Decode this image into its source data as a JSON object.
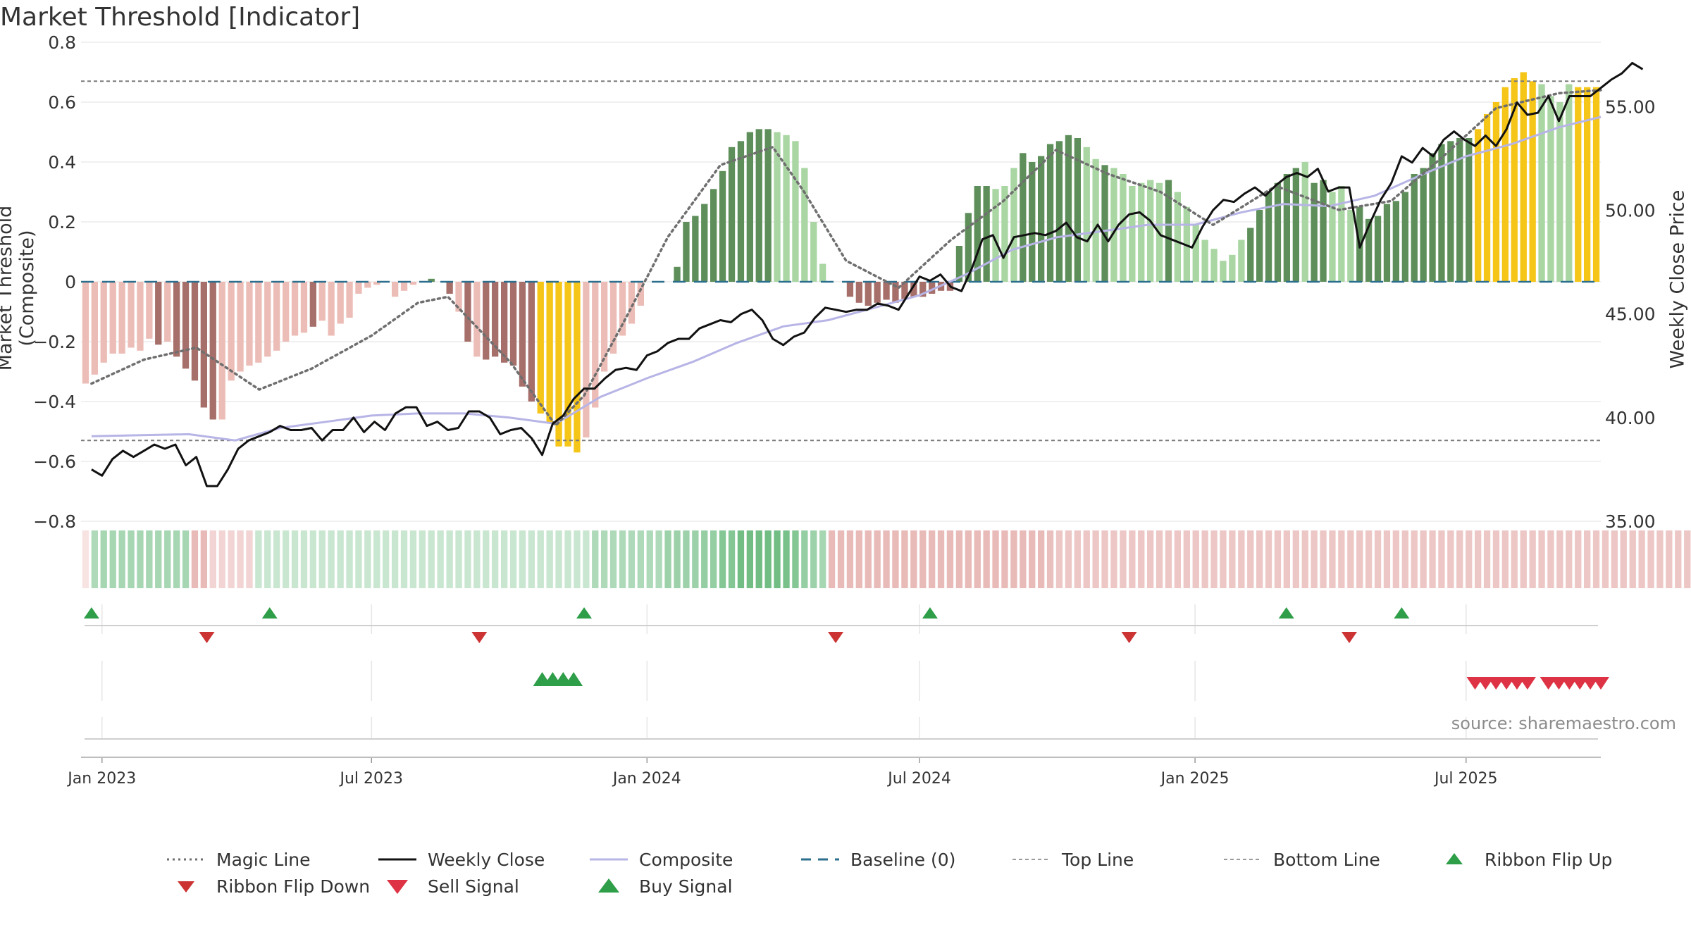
{
  "title": "Market Threshold [Indicator]",
  "source": "source: sharemaestro.com",
  "left_axis_label": "Market Threshold (Composite)",
  "right_axis_label": "Weekly Close Price",
  "colors": {
    "bar_up_dark": "#5e8f5a",
    "bar_up_light": "#a9d6a3",
    "bar_down_dark": "#a66f6a",
    "bar_down_light": "#ecbdb7",
    "bar_extreme": "#f5c518",
    "close": "#111111",
    "composite": "#b7b4e6",
    "magic": "#6f6f6f",
    "baseline": "#2c6e8e",
    "ribbon_up": "#2e9e49",
    "ribbon_down": "#cc3333",
    "buy": "#2e9e49",
    "sell": "#dd3344"
  },
  "legend": [
    {
      "label": "Magic Line",
      "style": "dotted-gray"
    },
    {
      "label": "Weekly Close",
      "style": "solid-black"
    },
    {
      "label": "Composite",
      "style": "solid-lavender"
    },
    {
      "label": "Baseline (0)",
      "style": "dashed-blue"
    },
    {
      "label": "Top Line",
      "style": "dotted-lightgray"
    },
    {
      "label": "Bottom Line",
      "style": "dotted-lightgray"
    },
    {
      "label": "Ribbon Flip Up",
      "style": "triangle-up-green"
    },
    {
      "label": "Ribbon Flip Down",
      "style": "triangle-down-red"
    },
    {
      "label": "Sell Signal",
      "style": "triangle-down-red"
    },
    {
      "label": "Buy Signal",
      "style": "triangle-up-green"
    }
  ],
  "chart_data": {
    "type": "bar",
    "x_range": [
      "2022-12-19",
      "2025-09-29"
    ],
    "x_ticks": [
      {
        "date": "2023-01-02",
        "label": "Jan 2023"
      },
      {
        "date": "2023-07-01",
        "label": "Jul 2023"
      },
      {
        "date": "2024-01-01",
        "label": "Jan 2024"
      },
      {
        "date": "2024-07-01",
        "label": "Jul 2024"
      },
      {
        "date": "2025-01-01",
        "label": "Jan 2025"
      },
      {
        "date": "2025-07-01",
        "label": "Jul 2025"
      }
    ],
    "left_axis": {
      "ylim": [
        -0.8,
        0.8
      ],
      "ticks": [
        {
          "v": 0.8,
          "label": "0.8"
        },
        {
          "v": 0.6,
          "label": "0.6"
        },
        {
          "v": 0.4,
          "label": "0.4"
        },
        {
          "v": 0.2,
          "label": "0.2"
        },
        {
          "v": 0,
          "label": "0"
        },
        {
          "v": -0.2,
          "label": "−0.2"
        },
        {
          "v": -0.4,
          "label": "−0.4"
        },
        {
          "v": -0.6,
          "label": "−0.6"
        },
        {
          "v": -0.8,
          "label": "−0.8"
        }
      ]
    },
    "right_axis": {
      "ylim": [
        35,
        58.1
      ],
      "ticks": [
        {
          "v": 55,
          "label": "55.00"
        },
        {
          "v": 50,
          "label": "50.00"
        },
        {
          "v": 45,
          "label": "45.00"
        },
        {
          "v": 40,
          "label": "40.00"
        },
        {
          "v": 35,
          "label": "35.00"
        }
      ]
    },
    "top_line": 0.67,
    "bottom_line": -0.53,
    "baseline": 0,
    "bar_values": [
      -0.34,
      -0.31,
      -0.27,
      -0.24,
      -0.24,
      -0.22,
      -0.23,
      -0.19,
      -0.21,
      -0.2,
      -0.25,
      -0.29,
      -0.33,
      -0.42,
      -0.46,
      -0.46,
      -0.33,
      -0.3,
      -0.28,
      -0.27,
      -0.25,
      -0.23,
      -0.2,
      -0.18,
      -0.17,
      -0.15,
      -0.13,
      -0.18,
      -0.14,
      -0.12,
      -0.04,
      -0.02,
      -0.01,
      0,
      -0.05,
      -0.03,
      -0.01,
      0,
      0.01,
      0,
      -0.04,
      -0.1,
      -0.2,
      -0.25,
      -0.26,
      -0.25,
      -0.27,
      -0.28,
      -0.35,
      -0.4,
      -0.44,
      -0.47,
      -0.55,
      -0.55,
      -0.57,
      -0.52,
      -0.42,
      -0.3,
      -0.24,
      -0.18,
      -0.14,
      -0.08,
      0,
      0,
      0,
      0.05,
      0.2,
      0.22,
      0.26,
      0.31,
      0.37,
      0.45,
      0.47,
      0.5,
      0.51,
      0.51,
      0.5,
      0.49,
      0.47,
      0.38,
      0.2,
      0.06,
      0,
      0,
      -0.05,
      -0.07,
      -0.08,
      -0.07,
      -0.06,
      -0.07,
      -0.06,
      -0.05,
      -0.05,
      -0.04,
      -0.03,
      -0.03,
      0.12,
      0.23,
      0.32,
      0.32,
      0.31,
      0.32,
      0.38,
      0.43,
      0.4,
      0.42,
      0.46,
      0.47,
      0.49,
      0.48,
      0.45,
      0.41,
      0.39,
      0.38,
      0.36,
      0.32,
      0.33,
      0.34,
      0.33,
      0.34,
      0.3,
      0.25,
      0.19,
      0.14,
      0.11,
      0.07,
      0.09,
      0.14,
      0.18,
      0.24,
      0.3,
      0.33,
      0.36,
      0.38,
      0.4,
      0.33,
      0.34,
      0.3,
      0.32,
      0.24,
      0.25,
      0.21,
      0.22,
      0.26,
      0.27,
      0.3,
      0.36,
      0.38,
      0.43,
      0.46,
      0.47,
      0.48,
      0.48,
      0.51,
      0.56,
      0.6,
      0.65,
      0.68,
      0.7,
      0.67,
      0.66,
      0.62,
      0.6,
      0.66,
      0.65,
      0.65,
      0.65
    ],
    "bar_tones": "LLLLLLLLDLDDDDDLLLLLLLLLLDLLLLLLLLLLLDDDDLDLDDDDDDYYYYYLLLLLLLDDDDDDDDDDDDDDLLLLLLDDDDDDDDDDDDDDDDDDLLLDDDDDDDLLDLLLLLLDLLLLLLLLDDDDDDLDDLLLDDDDDDDDDDDDDYYYYYYYLLLLYYYY",
    "ribbon_strength": [
      0.2,
      0.45,
      0.5,
      0.5,
      0.5,
      0.5,
      0.5,
      0.5,
      0.5,
      0.5,
      0.5,
      0.5,
      0.5,
      0.5,
      0.3,
      0.3,
      0.3,
      0.3,
      0.3,
      0.3,
      0.3,
      0.3,
      0.3,
      0.3,
      0.3,
      0.3,
      0.3,
      0.3,
      0.3,
      0.3,
      0.3,
      0.3,
      0.3,
      0.3,
      0.3,
      0.3,
      0.3,
      0.3,
      0.3,
      0.3,
      0.3,
      0.3,
      0.3,
      0.3,
      0.3,
      0.3,
      0.3,
      0.3,
      0.3,
      0.3,
      0.3,
      0.3,
      0.3,
      0.3,
      0.3,
      0.3,
      0.45,
      0.45,
      0.45,
      0.45,
      0.45,
      0.45,
      0.45,
      0.45,
      0.55,
      0.55,
      0.55,
      0.55,
      0.6,
      0.6,
      0.7,
      0.7,
      0.8,
      0.8,
      0.8,
      0.8,
      0.8,
      0.75,
      0.7,
      0.6,
      0.55,
      0.5,
      0.5,
      0.5,
      0.5,
      0.5,
      0.5,
      0.5,
      0.5,
      0.5,
      0.5,
      0.5,
      0.5,
      0.5,
      0.5,
      0.5,
      0.5,
      0.5,
      0.5,
      0.5,
      0.5,
      0.5,
      0.5,
      0.5,
      0.5,
      0.5,
      0.45,
      0.4,
      0.4,
      0.4,
      0.4,
      0.4,
      0.4,
      0.4,
      0.4,
      0.4,
      0.4,
      0.4,
      0.4,
      0.4,
      0.4,
      0.4,
      0.4,
      0.4,
      0.4,
      0.4,
      0.4,
      0.4,
      0.4,
      0.4,
      0.4,
      0.4,
      0.4,
      0.4,
      0.4,
      0.4,
      0.4,
      0.4,
      0.4,
      0.4,
      0.4,
      0.4,
      0.4,
      0.4,
      0.4,
      0.4,
      0.4,
      0.4,
      0.4,
      0.4,
      0.4,
      0.4,
      0.4,
      0.4,
      0.4,
      0.4,
      0.4,
      0.4,
      0.4,
      0.4,
      0.4,
      0.4,
      0.4,
      0.4,
      0.4,
      0.4,
      0.4,
      0.4,
      0.4,
      0.4,
      0.4,
      0.4,
      0.4,
      0.4,
      0.4,
      0.4,
      0.4,
      0.4,
      0.4,
      0.4
    ],
    "ribbon_sign": "DUUUUUUUUUUUDDDDDDDUUUUUUUUUUUUUUUUUUUUUUUUUUUUUUUUUUUUUUUUUUUUUUUUUUUUUUUUUUUUUUUDDDDDDDDDDDDDDDDDDDDDDDDDDDDDDDDDDDDDDDDDDDDDDDDDDDDDDDDDDDDDDDDDDDDDDDDDDDDDDDDDDDDDDDDDDDDDDDUUUUUUUUUUUUUUUUUUUUUUUUUUUUDDDDDDDDDDDDDDDDUUUUUUUUUUUUUUUUUUUUUUUUUUUUUUUUUUUUUUUUUUUUUUUUUUUUU",
    "magic_line": [
      {
        "date": "2022-12-26",
        "v": -0.34
      },
      {
        "date": "2023-01-30",
        "v": -0.26
      },
      {
        "date": "2023-03-06",
        "v": -0.22
      },
      {
        "date": "2023-04-17",
        "v": -0.36
      },
      {
        "date": "2023-05-22",
        "v": -0.29
      },
      {
        "date": "2023-07-01",
        "v": -0.18
      },
      {
        "date": "2023-08-01",
        "v": -0.07
      },
      {
        "date": "2023-08-21",
        "v": -0.05
      },
      {
        "date": "2023-10-02",
        "v": -0.27
      },
      {
        "date": "2023-11-01",
        "v": -0.48
      },
      {
        "date": "2023-11-20",
        "v": -0.38
      },
      {
        "date": "2023-12-18",
        "v": -0.12
      },
      {
        "date": "2024-01-15",
        "v": 0.15
      },
      {
        "date": "2024-02-19",
        "v": 0.39
      },
      {
        "date": "2024-03-25",
        "v": 0.45
      },
      {
        "date": "2024-04-15",
        "v": 0.3
      },
      {
        "date": "2024-05-13",
        "v": 0.07
      },
      {
        "date": "2024-06-17",
        "v": -0.02
      },
      {
        "date": "2024-07-22",
        "v": 0.14
      },
      {
        "date": "2024-08-26",
        "v": 0.27
      },
      {
        "date": "2024-09-30",
        "v": 0.44
      },
      {
        "date": "2024-11-04",
        "v": 0.36
      },
      {
        "date": "2024-12-09",
        "v": 0.3
      },
      {
        "date": "2025-01-13",
        "v": 0.19
      },
      {
        "date": "2025-02-24",
        "v": 0.32
      },
      {
        "date": "2025-04-07",
        "v": 0.24
      },
      {
        "date": "2025-05-12",
        "v": 0.27
      },
      {
        "date": "2025-06-16",
        "v": 0.42
      },
      {
        "date": "2025-07-21",
        "v": 0.58
      },
      {
        "date": "2025-09-01",
        "v": 0.63
      },
      {
        "date": "2025-09-29",
        "v": 0.64
      }
    ],
    "composite": [
      {
        "date": "2022-12-26",
        "v": 39.1
      },
      {
        "date": "2023-03-01",
        "v": 39.2
      },
      {
        "date": "2023-04-01",
        "v": 38.9
      },
      {
        "date": "2023-05-01",
        "v": 39.5
      },
      {
        "date": "2023-06-01",
        "v": 39.8
      },
      {
        "date": "2023-07-01",
        "v": 40.1
      },
      {
        "date": "2023-08-01",
        "v": 40.2
      },
      {
        "date": "2023-09-01",
        "v": 40.2
      },
      {
        "date": "2023-10-01",
        "v": 40.0
      },
      {
        "date": "2023-11-01",
        "v": 39.7
      },
      {
        "date": "2023-12-01",
        "v": 41.0
      },
      {
        "date": "2024-01-01",
        "v": 41.9
      },
      {
        "date": "2024-02-01",
        "v": 42.7
      },
      {
        "date": "2024-03-01",
        "v": 43.6
      },
      {
        "date": "2024-04-01",
        "v": 44.4
      },
      {
        "date": "2024-05-01",
        "v": 44.7
      },
      {
        "date": "2024-06-01",
        "v": 45.3
      },
      {
        "date": "2024-07-01",
        "v": 45.9
      },
      {
        "date": "2024-08-01",
        "v": 46.9
      },
      {
        "date": "2024-09-01",
        "v": 48.1
      },
      {
        "date": "2024-10-01",
        "v": 48.7
      },
      {
        "date": "2024-11-01",
        "v": 49.0
      },
      {
        "date": "2024-12-01",
        "v": 49.3
      },
      {
        "date": "2025-01-01",
        "v": 49.3
      },
      {
        "date": "2025-02-01",
        "v": 49.9
      },
      {
        "date": "2025-03-01",
        "v": 50.3
      },
      {
        "date": "2025-04-01",
        "v": 50.2
      },
      {
        "date": "2025-05-01",
        "v": 50.7
      },
      {
        "date": "2025-06-01",
        "v": 51.7
      },
      {
        "date": "2025-07-01",
        "v": 52.6
      },
      {
        "date": "2025-08-01",
        "v": 53.2
      },
      {
        "date": "2025-09-01",
        "v": 54.0
      },
      {
        "date": "2025-09-29",
        "v": 54.5
      }
    ],
    "weekly_close": [
      37.5,
      37.2,
      38.0,
      38.4,
      38.1,
      38.4,
      38.7,
      38.5,
      38.7,
      37.7,
      38.1,
      36.7,
      36.7,
      37.5,
      38.5,
      38.9,
      39.1,
      39.3,
      39.6,
      39.4,
      39.4,
      39.5,
      38.9,
      39.4,
      39.4,
      40.0,
      39.3,
      39.8,
      39.4,
      40.2,
      40.5,
      40.5,
      39.6,
      39.8,
      39.4,
      39.5,
      40.3,
      40.3,
      40.0,
      39.2,
      39.4,
      39.5,
      39.0,
      38.2,
      39.7,
      40.1,
      40.9,
      41.4,
      41.4,
      41.9,
      42.3,
      42.4,
      42.3,
      43.0,
      43.2,
      43.6,
      43.8,
      43.8,
      44.3,
      44.5,
      44.7,
      44.6,
      45.0,
      45.2,
      44.7,
      43.8,
      43.5,
      43.9,
      44.1,
      44.8,
      45.3,
      45.2,
      45.1,
      45.2,
      45.2,
      45.5,
      45.4,
      45.2,
      46.0,
      46.8,
      46.6,
      46.9,
      46.3,
      46.1,
      47.2,
      48.6,
      48.8,
      47.7,
      48.7,
      48.8,
      48.9,
      48.8,
      49.0,
      49.4,
      48.7,
      48.5,
      49.3,
      48.5,
      49.3,
      49.8,
      49.9,
      49.5,
      48.8,
      48.6,
      48.4,
      48.2,
      49.2,
      50.0,
      50.5,
      50.4,
      50.8,
      51.1,
      50.7,
      51.2,
      51.6,
      51.8,
      51.6,
      52.0,
      50.9,
      51.1,
      51.1,
      48.2,
      49.4,
      50.5,
      51.3,
      52.6,
      52.3,
      53.0,
      52.6,
      53.4,
      53.8,
      53.4,
      53.1,
      53.6,
      53.1,
      53.9,
      55.2,
      54.6,
      54.7,
      55.5,
      54.3,
      55.5,
      55.5,
      55.5,
      55.9,
      56.3,
      56.6,
      57.1,
      56.8
    ],
    "ribbon_flip_up": [
      "2022-12-26",
      "2023-04-24",
      "2023-11-20",
      "2024-07-08",
      "2025-03-03",
      "2025-05-19"
    ],
    "ribbon_flip_down": [
      "2023-03-13",
      "2023-09-11",
      "2024-05-06",
      "2024-11-18",
      "2025-04-14"
    ],
    "buy_signal": [
      "2023-10-23",
      "2023-10-30",
      "2023-11-06",
      "2023-11-13"
    ],
    "sell_signal": [
      "2025-07-07",
      "2025-07-14",
      "2025-07-21",
      "2025-07-28",
      "2025-08-04",
      "2025-08-11",
      "2025-08-25",
      "2025-09-01",
      "2025-09-08",
      "2025-09-15",
      "2025-09-22",
      "2025-09-29"
    ]
  }
}
